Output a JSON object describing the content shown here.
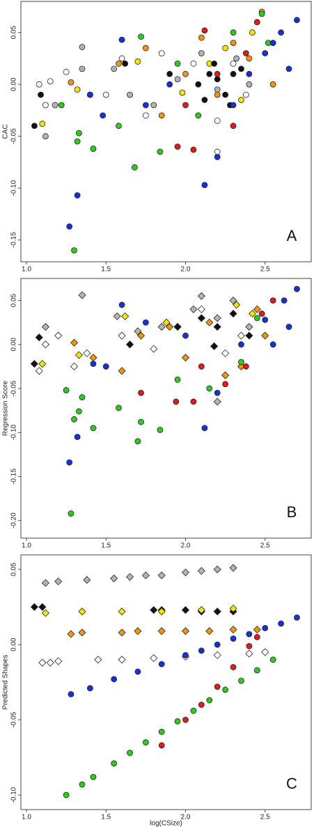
{
  "chart_data": [
    {
      "type": "scatter",
      "y_label": "CAC",
      "annotation": "A",
      "xlim": [
        0.965,
        2.79
      ],
      "ylim": [
        -0.171,
        0.08
      ],
      "xticks": [
        {
          "value": 1,
          "label": "1.0"
        },
        1.5,
        {
          "value": 2,
          "label": "2.0"
        },
        2.5
      ],
      "yticks": [
        {
          "value": -0.15,
          "label": "-0.15"
        },
        {
          "value": -0.1,
          "label": "-0.10"
        },
        {
          "value": -0.05,
          "label": "-0.05"
        },
        {
          "value": 0,
          "label": "0.00"
        },
        {
          "value": 0.05,
          "label": "0.05"
        }
      ],
      "series": [
        {
          "color": "#ffffff",
          "marker": "circle",
          "x": [
            1.08,
            1.12,
            1.15,
            1.25,
            1.5,
            1.6,
            1.75,
            1.85,
            2.05,
            2.2,
            2.3,
            2.38,
            2.2
          ],
          "y": [
            0.0,
            -0.02,
            0.003,
            0.012,
            -0.01,
            0.025,
            -0.03,
            0.03,
            0.02,
            -0.035,
            0.02,
            -0.01,
            -0.065
          ]
        },
        {
          "color": "#b3b3b3",
          "marker": "circle",
          "x": [
            1.12,
            1.18,
            1.35,
            1.35,
            1.55,
            1.65,
            1.8,
            1.95,
            2.1,
            2.2,
            2.32,
            2.4
          ],
          "y": [
            -0.05,
            -0.02,
            0.036,
            0.015,
            0.015,
            -0.01,
            -0.02,
            0.005,
            0.03,
            -0.005,
            0.025,
            0.0
          ]
        },
        {
          "color": "#f2e600",
          "marker": "circle",
          "x": [
            1.1,
            1.32,
            1.7,
            1.98,
            2.15,
            2.25,
            2.35,
            2.42
          ],
          "y": [
            -0.038,
            -0.005,
            0.022,
            -0.008,
            0.02,
            0.035,
            -0.015,
            0.05
          ]
        },
        {
          "color": "#f0950f",
          "marker": "circle",
          "x": [
            1.28,
            1.4,
            1.58,
            1.75,
            1.85,
            2.0,
            2.1,
            2.2,
            2.3,
            2.4,
            2.48,
            2.55
          ],
          "y": [
            0.002,
            -0.01,
            0.02,
            0.035,
            -0.03,
            0.01,
            0.045,
            -0.01,
            0.04,
            0.025,
            0.07,
            0.0
          ]
        },
        {
          "color": "#111111",
          "marker": "circle",
          "x": [
            1.05,
            1.09,
            1.62,
            1.9,
            2.08,
            2.15,
            2.2,
            2.25,
            2.3,
            2.35,
            2.12,
            2.28,
            2.18
          ],
          "y": [
            -0.04,
            -0.01,
            0.02,
            0.01,
            0.0,
            0.01,
            0.005,
            -0.01,
            0.01,
            0.015,
            -0.015,
            -0.02,
            0.02
          ]
        },
        {
          "color": "#2ecc1a",
          "marker": "circle",
          "x": [
            1.22,
            1.32,
            1.33,
            1.42,
            1.3,
            1.58,
            1.68,
            1.72,
            1.84,
            1.95,
            2.08,
            2.3,
            2.48,
            2.52
          ],
          "y": [
            -0.02,
            -0.055,
            -0.047,
            -0.062,
            -0.16,
            -0.04,
            -0.08,
            0.046,
            -0.065,
            0.02,
            -0.03,
            0.05,
            0.068,
            0.04
          ]
        },
        {
          "color": "#e01b1b",
          "marker": "circle",
          "x": [
            1.95,
            2.05,
            2.12,
            2.2,
            2.38,
            2.45,
            2.3,
            2.0
          ],
          "y": [
            -0.06,
            -0.063,
            0.052,
            0.01,
            0.03,
            0.06,
            -0.04,
            -0.02
          ]
        },
        {
          "color": "#1631d6",
          "marker": "circle",
          "x": [
            1.27,
            1.32,
            1.4,
            1.48,
            1.6,
            1.75,
            1.9,
            2.12,
            2.2,
            2.3,
            2.4,
            2.5,
            2.6,
            2.7,
            2.65,
            2.55
          ],
          "y": [
            -0.137,
            -0.107,
            -0.01,
            -0.03,
            0.043,
            -0.02,
            0.0,
            -0.097,
            -0.07,
            -0.02,
            0.01,
            0.03,
            0.05,
            0.062,
            0.015,
            0.04
          ]
        }
      ]
    },
    {
      "type": "scatter",
      "y_label": "Regression Score",
      "annotation": "B",
      "xlim": [
        0.965,
        2.79
      ],
      "ylim": [
        -0.22,
        0.075
      ],
      "xticks": [
        {
          "value": 1,
          "label": "1.0"
        },
        1.5,
        {
          "value": 2,
          "label": "2.0"
        },
        2.5
      ],
      "yticks": [
        {
          "value": -0.2,
          "label": "-0.20"
        },
        {
          "value": -0.15,
          "label": "-0.15"
        },
        {
          "value": -0.1,
          "label": "-0.10"
        },
        {
          "value": -0.05,
          "label": "-0.05"
        },
        {
          "value": 0,
          "label": "0.00"
        },
        {
          "value": 0.05,
          "label": "0.05"
        }
      ],
      "series": [
        {
          "color": "#ffffff",
          "marker": "diamond",
          "x": [
            1.08,
            1.12,
            1.2,
            1.3,
            1.38,
            1.6,
            1.8,
            1.95,
            2.1,
            2.25,
            2.35
          ],
          "y": [
            -0.03,
            0.0,
            0.01,
            -0.025,
            -0.01,
            0.01,
            -0.005,
            0.02,
            0.04,
            -0.01,
            0.01
          ]
        },
        {
          "color": "#b3b3b3",
          "marker": "diamond",
          "x": [
            1.12,
            1.35,
            1.57,
            1.7,
            1.85,
            2.05,
            2.1,
            2.2,
            2.3,
            2.4,
            2.2
          ],
          "y": [
            0.02,
            0.056,
            0.032,
            0.015,
            0.02,
            0.04,
            0.055,
            0.03,
            0.05,
            0.02,
            -0.065
          ]
        },
        {
          "color": "#f2e600",
          "marker": "diamond",
          "x": [
            1.1,
            1.33,
            1.62,
            1.88,
            2.32,
            2.42
          ],
          "y": [
            -0.022,
            -0.012,
            0.032,
            0.025,
            0.045,
            0.035
          ]
        },
        {
          "color": "#f0950f",
          "marker": "diamond",
          "x": [
            1.3,
            1.42,
            1.6,
            1.72,
            1.9,
            2.0,
            2.15,
            2.25,
            2.35,
            2.45,
            2.5
          ],
          "y": [
            0.002,
            -0.015,
            -0.03,
            0.01,
            0.02,
            -0.015,
            0.025,
            -0.035,
            -0.025,
            0.04,
            0.01
          ]
        },
        {
          "color": "#111111",
          "marker": "diamond",
          "x": [
            1.05,
            1.08,
            1.65,
            1.95,
            2.1,
            2.2,
            2.3,
            2.4,
            2.18
          ],
          "y": [
            -0.022,
            0.008,
            0.0,
            0.02,
            0.03,
            0.02,
            0.035,
            0.01,
            -0.002
          ]
        },
        {
          "color": "#2ecc1a",
          "marker": "circle",
          "x": [
            1.25,
            1.3,
            1.33,
            1.35,
            1.42,
            1.28,
            1.58,
            1.7,
            1.72,
            1.84,
            1.95,
            2.15,
            2.35,
            2.45
          ],
          "y": [
            -0.052,
            -0.085,
            -0.076,
            -0.06,
            -0.095,
            -0.192,
            -0.072,
            -0.11,
            -0.088,
            -0.097,
            -0.04,
            -0.05,
            -0.02,
            0.03
          ]
        },
        {
          "color": "#e01b1b",
          "marker": "circle",
          "x": [
            1.72,
            1.94,
            2.05,
            2.1,
            2.25,
            2.38,
            2.48,
            2.55
          ],
          "y": [
            -0.055,
            -0.065,
            -0.065,
            -0.025,
            -0.045,
            -0.025,
            0.035,
            0.05
          ]
        },
        {
          "color": "#1631d6",
          "marker": "circle",
          "x": [
            1.27,
            1.32,
            1.42,
            1.5,
            1.6,
            1.75,
            2.0,
            2.12,
            2.2,
            2.35,
            2.5,
            2.62,
            2.7,
            2.65,
            2.55
          ],
          "y": [
            -0.134,
            -0.105,
            -0.022,
            -0.025,
            0.045,
            0.025,
            0.01,
            -0.095,
            -0.055,
            0.0,
            0.028,
            0.05,
            0.063,
            0.02,
            0.0
          ]
        }
      ]
    },
    {
      "type": "scatter",
      "y_label": "Predicted Shapes",
      "x_label": "log(CSize)",
      "annotation": "C",
      "xlim": [
        0.965,
        2.79
      ],
      "ylim": [
        -0.1097,
        0.0597
      ],
      "xticks": [
        {
          "value": 1,
          "label": "1.0"
        },
        1.5,
        {
          "value": 2,
          "label": "2.0"
        },
        2.5
      ],
      "yticks": [
        {
          "value": -0.1,
          "label": "-0.10"
        },
        {
          "value": -0.05,
          "label": "-0.05"
        },
        {
          "value": 0,
          "label": "0.00"
        },
        {
          "value": 0.05,
          "label": "0.05"
        }
      ],
      "series": [
        {
          "color": "#b3b3b3",
          "marker": "diamond",
          "x": [
            1.12,
            1.2,
            1.38,
            1.55,
            1.65,
            1.75,
            1.85,
            2.0,
            2.1,
            2.2,
            2.3
          ],
          "y": [
            0.041,
            0.042,
            0.043,
            0.044,
            0.045,
            0.046,
            0.046,
            0.048,
            0.049,
            0.05,
            0.051
          ]
        },
        {
          "color": "#111111",
          "marker": "diamond",
          "x": [
            1.05,
            1.1,
            1.8,
            1.85,
            2.0,
            2.1,
            2.2,
            2.3
          ],
          "y": [
            0.025,
            0.025,
            0.023,
            0.023,
            0.023,
            0.022,
            0.022,
            0.022
          ]
        },
        {
          "color": "#f2e600",
          "marker": "diamond",
          "x": [
            1.12,
            1.35,
            1.6,
            1.85,
            2.1,
            2.3
          ],
          "y": [
            0.021,
            0.022,
            0.022,
            0.022,
            0.023,
            0.024
          ]
        },
        {
          "color": "#f0950f",
          "marker": "diamond",
          "x": [
            1.28,
            1.35,
            1.6,
            1.7,
            1.85,
            2.0,
            2.15,
            2.3,
            2.45
          ],
          "y": [
            0.007,
            0.008,
            0.008,
            0.009,
            0.009,
            0.009,
            0.009,
            0.01,
            0.01
          ]
        },
        {
          "color": "#ffffff",
          "marker": "diamond",
          "x": [
            1.1,
            1.15,
            1.2,
            1.45,
            1.6,
            1.8,
            2.0,
            2.2,
            2.4,
            2.5
          ],
          "y": [
            -0.012,
            -0.012,
            -0.011,
            -0.01,
            -0.01,
            -0.009,
            -0.008,
            -0.007,
            -0.006,
            -0.005
          ]
        },
        {
          "color": "#1631d6",
          "marker": "circle",
          "x": [
            1.28,
            1.4,
            1.55,
            1.7,
            1.85,
            2.0,
            2.1,
            2.2,
            2.3,
            2.4,
            2.5,
            2.6,
            2.7
          ],
          "y": [
            -0.033,
            -0.029,
            -0.023,
            -0.018,
            -0.013,
            -0.007,
            -0.004,
            0.0,
            0.004,
            0.007,
            0.011,
            0.014,
            0.018
          ]
        },
        {
          "color": "#2ecc1a",
          "marker": "circle",
          "x": [
            1.25,
            1.35,
            1.42,
            1.55,
            1.65,
            1.75,
            1.85,
            1.95,
            2.05,
            2.15,
            2.25,
            2.35,
            2.45,
            2.55
          ],
          "y": [
            -0.1,
            -0.093,
            -0.088,
            -0.079,
            -0.072,
            -0.065,
            -0.058,
            -0.051,
            -0.044,
            -0.037,
            -0.03,
            -0.024,
            -0.017,
            -0.01
          ]
        },
        {
          "color": "#e01b1b",
          "marker": "circle",
          "x": [
            1.85,
            2.0,
            2.1,
            2.2,
            2.3,
            2.4,
            2.45
          ],
          "y": [
            -0.067,
            -0.05,
            -0.04,
            -0.028,
            -0.015,
            -0.001,
            0.005
          ]
        }
      ]
    }
  ]
}
